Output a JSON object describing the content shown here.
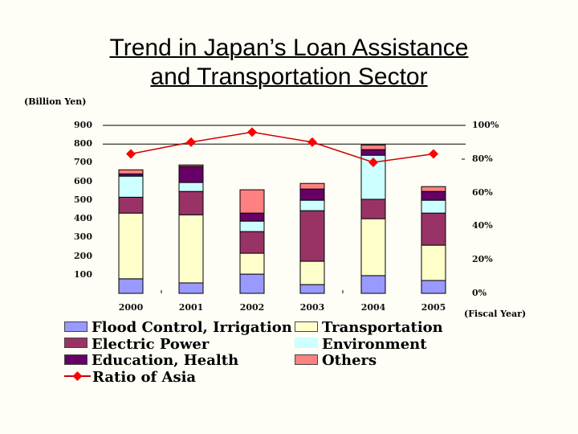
{
  "title": {
    "line1": "Trend in Japan’s Loan Assistance",
    "line2": "and Transportation Sector"
  },
  "unit_label": "(Billion Yen)",
  "x_axis_label": "(Fiscal Year)",
  "y_ticks": [
    "900",
    "800",
    "700",
    "600",
    "500",
    "400",
    "300",
    "200",
    "100"
  ],
  "right_ticks": [
    "100%",
    "80%",
    "60%",
    "40%",
    "20%",
    "0%"
  ],
  "years": [
    "2000",
    "2001",
    "2002",
    "2003",
    "2004",
    "2005"
  ],
  "legend": [
    {
      "label": "Flood Control, Irrigation",
      "color": "#9999ff"
    },
    {
      "label": "Transportation",
      "color": "#ffffcc"
    },
    {
      "label": "Electric Power",
      "color": "#993366"
    },
    {
      "label": "Environment",
      "color": "#ccffff"
    },
    {
      "label": "Education, Health",
      "color": "#660066"
    },
    {
      "label": "Others",
      "color": "#ff8080"
    },
    {
      "label": "Ratio of Asia",
      "color": "#ff0000"
    }
  ],
  "chart_data": {
    "type": "bar",
    "stacked": true,
    "title": "Trend in Japan’s Loan Assistance and Transportation Sector",
    "xlabel": "(Fiscal Year)",
    "ylabel": "(Billion Yen)",
    "ylim": [
      0,
      900
    ],
    "y2lim": [
      0,
      100
    ],
    "categories": [
      "2000",
      "2001",
      "2002",
      "2003",
      "2004",
      "2005"
    ],
    "series": [
      {
        "name": "Flood Control, Irrigation",
        "color": "#9999ff",
        "values": [
          78,
          56,
          103,
          47,
          95,
          69
        ]
      },
      {
        "name": "Transportation",
        "color": "#ffffcc",
        "values": [
          352,
          365,
          112,
          125,
          305,
          189
        ]
      },
      {
        "name": "Electric Power",
        "color": "#993366",
        "values": [
          85,
          125,
          116,
          271,
          104,
          172
        ]
      },
      {
        "name": "Environment",
        "color": "#ccffff",
        "values": [
          113,
          48,
          56,
          56,
          236,
          69
        ]
      },
      {
        "name": "Education, Health",
        "color": "#660066",
        "values": [
          12,
          86,
          43,
          60,
          30,
          47
        ]
      },
      {
        "name": "Others",
        "color": "#ff8080",
        "values": [
          22,
          8,
          125,
          30,
          25,
          26
        ]
      }
    ],
    "line_series": {
      "name": "Ratio of Asia",
      "axis": "right",
      "unit": "%",
      "color": "#ff0000",
      "values": [
        83,
        90,
        96,
        90,
        78,
        83
      ]
    },
    "gridlines": [
      800,
      900
    ],
    "legend_position": "bottom"
  }
}
